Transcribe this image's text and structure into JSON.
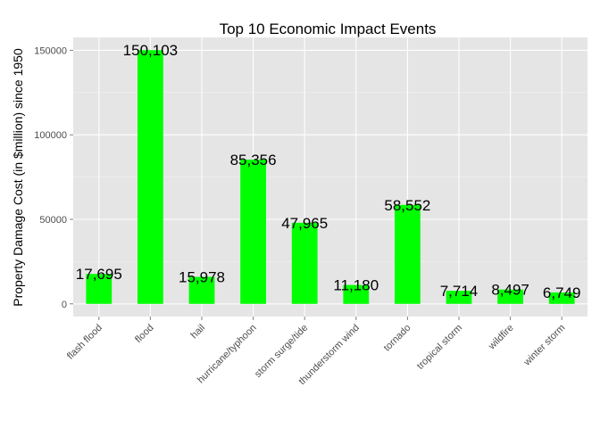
{
  "chart_data": {
    "type": "bar",
    "title": "Top 10 Economic Impact Events",
    "xlabel": "",
    "ylabel": "Property Damage Cost (in $million) since 1950",
    "categories": [
      "flash flood",
      "flood",
      "hail",
      "hurricane/typhoon",
      "storm surge/tide",
      "thunderstorm wind",
      "tornado",
      "tropical storm",
      "wildfire",
      "winter storm"
    ],
    "values": [
      17695,
      150103,
      15978,
      85356,
      47965,
      11180,
      58552,
      7714,
      8497,
      6749
    ],
    "value_labels": [
      "17,695",
      "150,103",
      "15,978",
      "85,356",
      "47,965",
      "11,180",
      "58,552",
      "7,714",
      "8,497",
      "6,749"
    ],
    "yticks": [
      0,
      50000,
      100000,
      150000
    ],
    "ytick_labels": [
      "0",
      "50000",
      "100000",
      "150000"
    ],
    "ylim": [
      -7505,
      157608
    ],
    "bar_color": "#00ff00",
    "panel_color": "#e5e5e5",
    "grid": true,
    "legend": "none"
  }
}
